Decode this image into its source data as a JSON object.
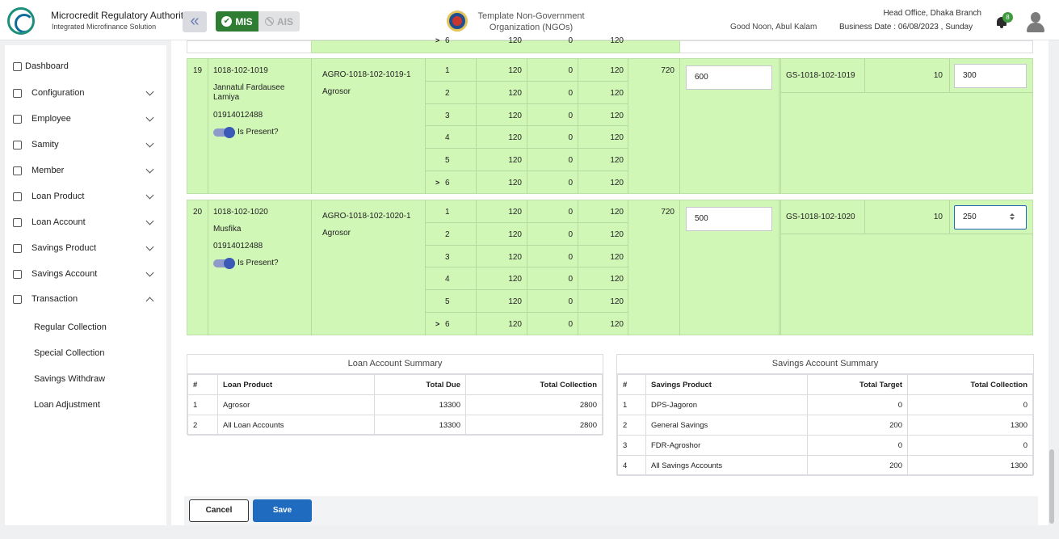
{
  "header": {
    "org_title": "Microcredit Regulatory Authority",
    "org_subtitle": "Integrated Microfinance Solution",
    "logo_text": "Microcredit Regulatory Authority",
    "sys_mis": "MIS",
    "sys_ais": "AIS",
    "template_name": "Template Non-Government Organization (NGOs)",
    "greeting": "Good Noon, Abul Kalam",
    "branch": "Head Office, Dhaka Branch",
    "business_date": "Business Date : 06/08/2023 , Sunday",
    "notification_count": "8"
  },
  "sidebar": {
    "dashboard": "Dashboard",
    "items": [
      "Configuration",
      "Employee",
      "Samity",
      "Member",
      "Loan Product",
      "Loan Account",
      "Savings Product",
      "Savings Account",
      "Transaction"
    ],
    "sub_items": [
      "Regular Collection",
      "Special Collection",
      "Savings Withdraw",
      "Loan Adjustment"
    ]
  },
  "prev_row_tail": {
    "marker": ">",
    "installment": "6",
    "amount": "120",
    "paid": "0",
    "due": "120"
  },
  "members": [
    {
      "sl": "19",
      "member_code": "1018-102-1019",
      "name": "Jannatul Fardausee Lamiya",
      "name_line1": "Jannatul Fardausee",
      "name_line2": "Lamiya",
      "phone": "01914012488",
      "present_label": "Is Present?",
      "loan_account": "AGRO-1018-102-1019-1",
      "loan_product": "Agrosor",
      "installments": [
        {
          "no": "1",
          "amount": "120",
          "paid": "0",
          "due": "120"
        },
        {
          "no": "2",
          "amount": "120",
          "paid": "0",
          "due": "120"
        },
        {
          "no": "3",
          "amount": "120",
          "paid": "0",
          "due": "120"
        },
        {
          "no": "4",
          "amount": "120",
          "paid": "0",
          "due": "120"
        },
        {
          "no": "5",
          "amount": "120",
          "paid": "0",
          "due": "120"
        },
        {
          "no": "6",
          "amount": "120",
          "paid": "0",
          "due": "120",
          "marker": ">"
        }
      ],
      "total_due": "720",
      "collection": "600",
      "savings_account": "GS-1018-102-1019",
      "savings_target": "10",
      "savings_collection": "300"
    },
    {
      "sl": "20",
      "member_code": "1018-102-1020",
      "name_line1": "Musfika",
      "name_line2": "",
      "phone": "01914012488",
      "present_label": "Is Present?",
      "loan_account": "AGRO-1018-102-1020-1",
      "loan_product": "Agrosor",
      "installments": [
        {
          "no": "1",
          "amount": "120",
          "paid": "0",
          "due": "120"
        },
        {
          "no": "2",
          "amount": "120",
          "paid": "0",
          "due": "120"
        },
        {
          "no": "3",
          "amount": "120",
          "paid": "0",
          "due": "120"
        },
        {
          "no": "4",
          "amount": "120",
          "paid": "0",
          "due": "120"
        },
        {
          "no": "5",
          "amount": "120",
          "paid": "0",
          "due": "120"
        },
        {
          "no": "6",
          "amount": "120",
          "paid": "0",
          "due": "120",
          "marker": ">"
        }
      ],
      "total_due": "720",
      "collection": "500",
      "savings_account": "GS-1018-102-1020",
      "savings_target": "10",
      "savings_collection": "250"
    }
  ],
  "loan_summary": {
    "title": "Loan Account Summary",
    "headers": [
      "#",
      "Loan Product",
      "Total Due",
      "Total Collection"
    ],
    "rows": [
      [
        "1",
        "Agrosor",
        "13300",
        "2800"
      ],
      [
        "2",
        "All Loan Accounts",
        "13300",
        "2800"
      ]
    ]
  },
  "savings_summary": {
    "title": "Savings Account Summary",
    "headers": [
      "#",
      "Savings Product",
      "Total Target",
      "Total Collection"
    ],
    "rows": [
      [
        "1",
        "DPS-Jagoron",
        "0",
        "0"
      ],
      [
        "2",
        "General Savings",
        "200",
        "1300"
      ],
      [
        "3",
        "FDR-Agroshor",
        "0",
        "0"
      ],
      [
        "4",
        "All Savings Accounts",
        "200",
        "1300"
      ]
    ]
  },
  "actions": {
    "cancel": "Cancel",
    "save": "Save"
  }
}
